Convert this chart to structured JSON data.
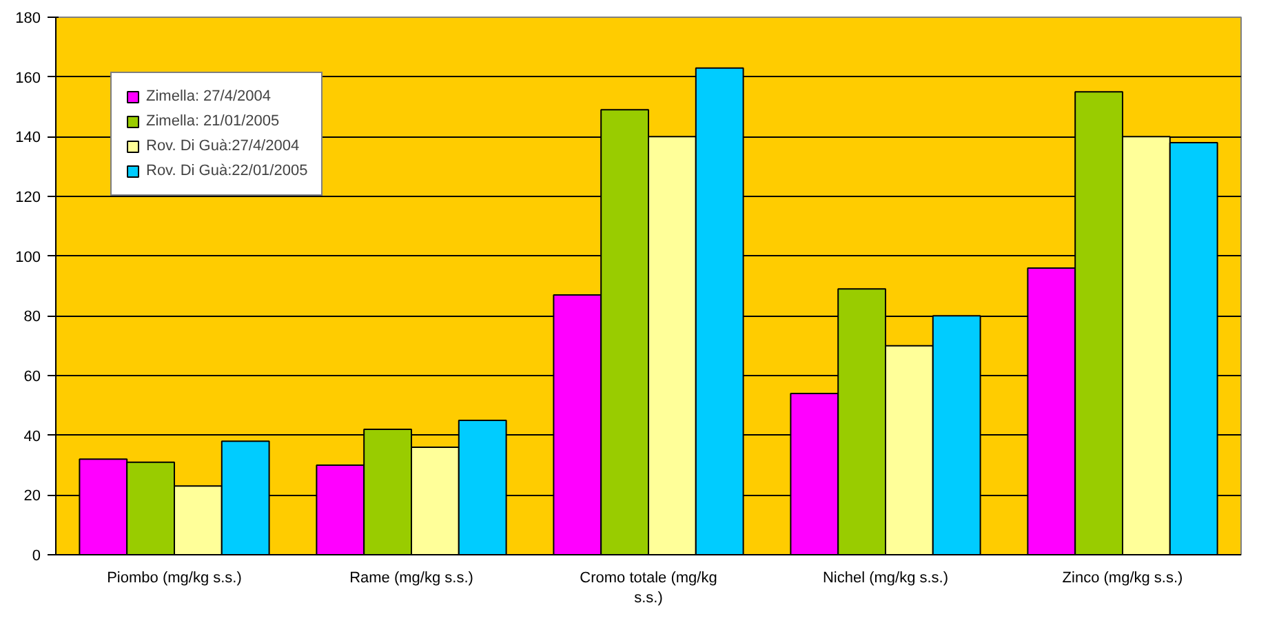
{
  "chart_data": {
    "type": "bar",
    "categories": [
      "Piombo (mg/kg s.s.)",
      "Rame (mg/kg s.s.)",
      "Cromo totale (mg/kg s.s.)",
      "Nichel (mg/kg s.s.)",
      "Zinco (mg/kg s.s.)"
    ],
    "series": [
      {
        "name": "Zimella: 27/4/2004",
        "color": "#ff00ff",
        "values": [
          32,
          30,
          87,
          54,
          96
        ]
      },
      {
        "name": "Zimella: 21/01/2005",
        "color": "#99cc00",
        "values": [
          31,
          42,
          149,
          89,
          155
        ]
      },
      {
        "name": "Rov. Di Guà:27/4/2004",
        "color": "#ffff99",
        "values": [
          23,
          36,
          140,
          70,
          140
        ]
      },
      {
        "name": "Rov. Di Guà:22/01/2005",
        "color": "#00ccff",
        "values": [
          38,
          45,
          163,
          80,
          138
        ]
      }
    ],
    "ylim": [
      0,
      180
    ],
    "yticks": [
      0,
      20,
      40,
      60,
      80,
      100,
      120,
      140,
      160,
      180
    ],
    "grid": "y",
    "legend": "top left"
  }
}
